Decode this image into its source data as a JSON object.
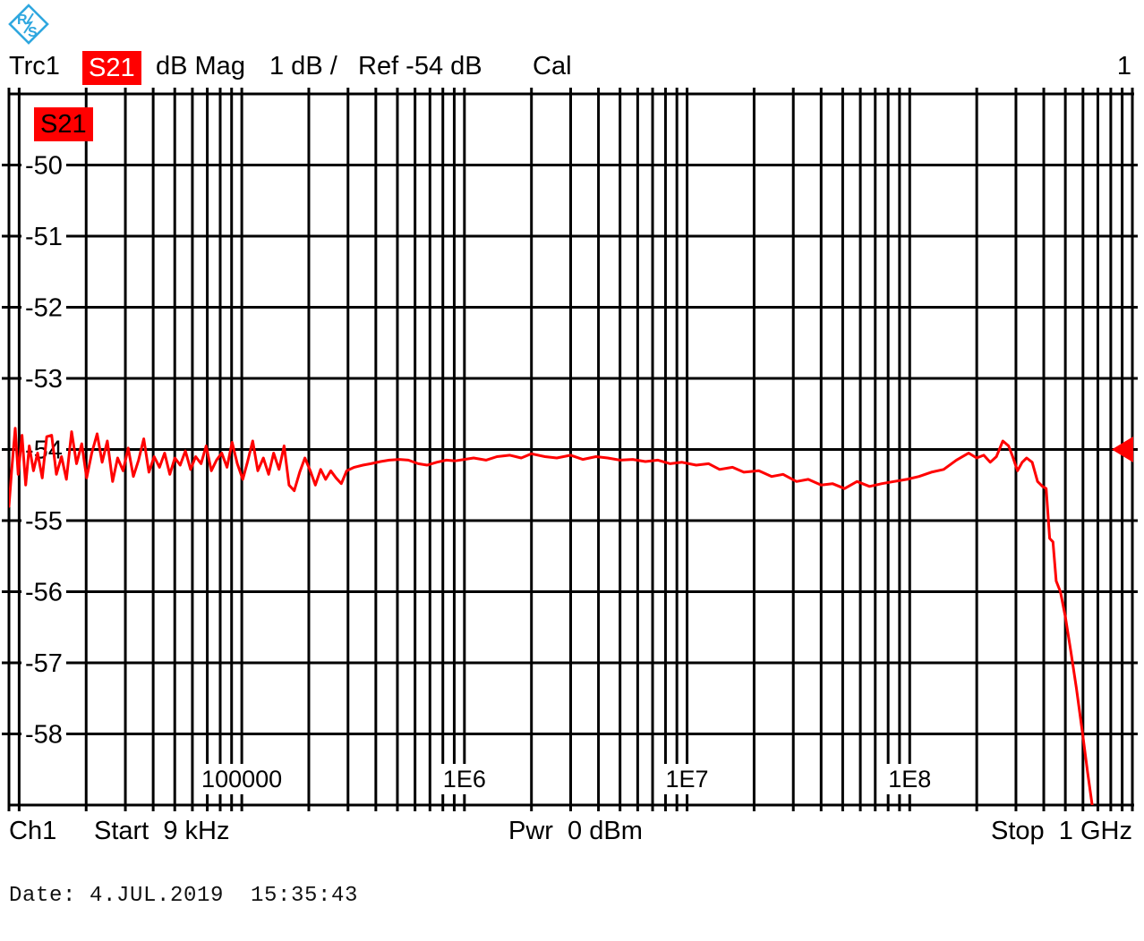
{
  "header": {
    "trace": "Trc1",
    "parameter": "S21",
    "format": "dB Mag",
    "scale": "1 dB /",
    "ref": "Ref -54 dB",
    "cal": "Cal",
    "window_number": "1"
  },
  "footer": {
    "channel": "Ch1",
    "start": "Start  9 kHz",
    "power": "Pwr  0 dBm",
    "stop": "Stop  1 GHz"
  },
  "date_line": "Date: 4.JUL.2019  15:35:43",
  "logo": {
    "name": "rohde-schwarz",
    "color": "#2fa7df"
  },
  "colors": {
    "trace": "#ff0000",
    "accent_red": "#ff0000",
    "badge_text_header": "#ffffff",
    "badge_text_chart": "#000000",
    "grid": "#000000",
    "background": "#ffffff"
  },
  "chart_data": {
    "type": "line",
    "title": "Trc1 S21 dB Mag 1 dB / Ref -54 dB Cal",
    "trace_label": "S21",
    "legend_position": "top-left-badge",
    "grid": true,
    "x_axis": {
      "scale": "log",
      "unit": "Hz",
      "start_hz": 9000,
      "stop_hz": 1000000000,
      "start_label": "Start  9 kHz",
      "stop_label": "Stop  1 GHz",
      "tick_labels": [
        {
          "value_hz": 100000,
          "label": "100000"
        },
        {
          "value_hz": 1000000,
          "label": "1E6"
        },
        {
          "value_hz": 10000000,
          "label": "1E7"
        },
        {
          "value_hz": 100000000,
          "label": "1E8"
        }
      ]
    },
    "y_axis": {
      "unit": "dB",
      "ref_level_db": -54,
      "db_per_div": 1,
      "top_db": -49,
      "bottom_db": -59,
      "tick_labels": [
        -50,
        -51,
        -52,
        -53,
        -54,
        -55,
        -56,
        -57,
        -58
      ]
    },
    "ref_marker": {
      "level_db": -54,
      "shape": "left-pointing-triangle",
      "color": "#ff0000"
    },
    "series": [
      {
        "name": "Trc1 S21 dB Mag",
        "color": "#ff0000",
        "points_hz_db": [
          [
            9000,
            -54.8
          ],
          [
            9250,
            -54.3
          ],
          [
            9600,
            -53.7
          ],
          [
            9900,
            -54.35
          ],
          [
            10300,
            -53.8
          ],
          [
            10700,
            -54.5
          ],
          [
            11100,
            -53.95
          ],
          [
            11600,
            -54.3
          ],
          [
            12100,
            -54.05
          ],
          [
            12700,
            -54.4
          ],
          [
            13300,
            -53.82
          ],
          [
            14000,
            -53.8
          ],
          [
            14700,
            -54.35
          ],
          [
            15500,
            -54.1
          ],
          [
            16300,
            -54.42
          ],
          [
            17200,
            -53.75
          ],
          [
            18100,
            -54.2
          ],
          [
            19100,
            -53.92
          ],
          [
            20100,
            -54.4
          ],
          [
            21200,
            -54.05
          ],
          [
            22400,
            -53.78
          ],
          [
            23600,
            -54.18
          ],
          [
            24900,
            -53.88
          ],
          [
            26300,
            -54.45
          ],
          [
            27700,
            -54.12
          ],
          [
            29300,
            -54.3
          ],
          [
            30900,
            -53.98
          ],
          [
            32600,
            -54.38
          ],
          [
            34400,
            -54.15
          ],
          [
            36300,
            -53.85
          ],
          [
            38300,
            -54.32
          ],
          [
            40400,
            -54.1
          ],
          [
            42700,
            -54.25
          ],
          [
            45000,
            -54.05
          ],
          [
            47500,
            -54.35
          ],
          [
            50100,
            -54.12
          ],
          [
            52900,
            -54.22
          ],
          [
            55800,
            -54.02
          ],
          [
            58900,
            -54.28
          ],
          [
            62100,
            -54.1
          ],
          [
            65600,
            -54.2
          ],
          [
            69200,
            -53.95
          ],
          [
            73000,
            -54.3
          ],
          [
            77000,
            -54.15
          ],
          [
            81300,
            -54.05
          ],
          [
            85800,
            -54.25
          ],
          [
            90500,
            -53.9
          ],
          [
            95500,
            -54.2
          ],
          [
            101000,
            -54.42
          ],
          [
            106000,
            -54.18
          ],
          [
            112000,
            -53.88
          ],
          [
            118000,
            -54.3
          ],
          [
            125000,
            -54.12
          ],
          [
            132000,
            -54.35
          ],
          [
            139000,
            -54.05
          ],
          [
            147000,
            -54.28
          ],
          [
            155000,
            -53.95
          ],
          [
            163000,
            -54.5
          ],
          [
            172000,
            -54.58
          ],
          [
            182000,
            -54.32
          ],
          [
            192000,
            -54.12
          ],
          [
            203000,
            -54.3
          ],
          [
            214000,
            -54.5
          ],
          [
            226000,
            -54.28
          ],
          [
            238000,
            -54.42
          ],
          [
            251000,
            -54.3
          ],
          [
            265000,
            -54.4
          ],
          [
            280000,
            -54.48
          ],
          [
            296000,
            -54.3
          ],
          [
            320000,
            -54.25
          ],
          [
            350000,
            -54.22
          ],
          [
            380000,
            -54.2
          ],
          [
            420000,
            -54.17
          ],
          [
            460000,
            -54.15
          ],
          [
            510000,
            -54.14
          ],
          [
            560000,
            -54.15
          ],
          [
            620000,
            -54.2
          ],
          [
            680000,
            -54.22
          ],
          [
            750000,
            -54.18
          ],
          [
            830000,
            -54.15
          ],
          [
            910000,
            -54.16
          ],
          [
            1000000,
            -54.14
          ],
          [
            1100000,
            -54.12
          ],
          [
            1250000,
            -54.15
          ],
          [
            1400000,
            -54.1
          ],
          [
            1600000,
            -54.08
          ],
          [
            1800000,
            -54.12
          ],
          [
            2000000,
            -54.06
          ],
          [
            2300000,
            -54.1
          ],
          [
            2600000,
            -54.12
          ],
          [
            3000000,
            -54.08
          ],
          [
            3400000,
            -54.14
          ],
          [
            3900000,
            -54.1
          ],
          [
            4400000,
            -54.12
          ],
          [
            5000000,
            -54.15
          ],
          [
            5700000,
            -54.14
          ],
          [
            6500000,
            -54.17
          ],
          [
            7400000,
            -54.15
          ],
          [
            8400000,
            -54.2
          ],
          [
            9500000,
            -54.18
          ],
          [
            11000000,
            -54.22
          ],
          [
            12500000,
            -54.2
          ],
          [
            14000000,
            -54.28
          ],
          [
            16000000,
            -54.25
          ],
          [
            18000000,
            -54.32
          ],
          [
            21000000,
            -54.3
          ],
          [
            24000000,
            -54.38
          ],
          [
            27000000,
            -54.35
          ],
          [
            31000000,
            -54.45
          ],
          [
            35000000,
            -54.42
          ],
          [
            40000000,
            -54.5
          ],
          [
            45000000,
            -54.48
          ],
          [
            51000000,
            -54.55
          ],
          [
            58000000,
            -54.45
          ],
          [
            66000000,
            -54.52
          ],
          [
            75000000,
            -54.48
          ],
          [
            85000000,
            -54.45
          ],
          [
            97000000,
            -54.42
          ],
          [
            110000000,
            -54.38
          ],
          [
            125000000,
            -54.32
          ],
          [
            142000000,
            -54.28
          ],
          [
            162000000,
            -54.15
          ],
          [
            184000000,
            -54.05
          ],
          [
            200000000,
            -54.12
          ],
          [
            215000000,
            -54.08
          ],
          [
            230000000,
            -54.18
          ],
          [
            245000000,
            -54.1
          ],
          [
            262000000,
            -53.88
          ],
          [
            278000000,
            -53.95
          ],
          [
            290000000,
            -54.1
          ],
          [
            305000000,
            -54.3
          ],
          [
            320000000,
            -54.18
          ],
          [
            335000000,
            -54.12
          ],
          [
            355000000,
            -54.18
          ],
          [
            375000000,
            -54.45
          ],
          [
            395000000,
            -54.52
          ],
          [
            410000000,
            -54.55
          ],
          [
            425000000,
            -55.25
          ],
          [
            440000000,
            -55.3
          ],
          [
            455000000,
            -55.85
          ],
          [
            475000000,
            -56.0
          ],
          [
            500000000,
            -56.35
          ],
          [
            530000000,
            -56.85
          ],
          [
            560000000,
            -57.35
          ],
          [
            595000000,
            -57.95
          ],
          [
            630000000,
            -58.55
          ],
          [
            660000000,
            -59.0
          ],
          [
            680000000,
            -59.4
          ]
        ]
      }
    ]
  }
}
